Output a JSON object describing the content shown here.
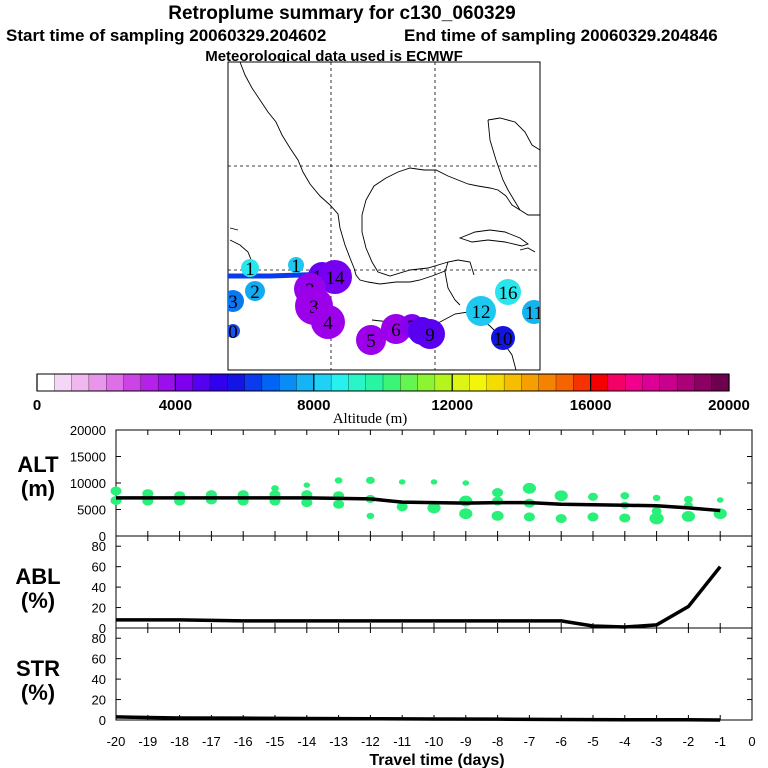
{
  "header": {
    "title": "Retroplume summary for c130_060329",
    "start_label": "Start time of sampling 20060329.204602",
    "end_label": "End time of sampling 20060329.204846",
    "met_label": "Meteorological data used is ECMWF"
  },
  "colorbar": {
    "label": "Altitude (m)",
    "ticks": [
      "0",
      "4000",
      "8000",
      "12000",
      "16000",
      "20000"
    ],
    "colors": [
      "#ffffff",
      "#f5d6f5",
      "#efb8ef",
      "#e896ea",
      "#dd70e6",
      "#cc44e6",
      "#b422e8",
      "#9a10ea",
      "#7e00ee",
      "#5500f0",
      "#3200ee",
      "#1414e6",
      "#0a3cee",
      "#0064f5",
      "#0a8cf5",
      "#14b4f5",
      "#1ed2f5",
      "#28f0ee",
      "#28f5c8",
      "#28f5a0",
      "#3cf578",
      "#64f550",
      "#8cf532",
      "#b4f51e",
      "#dcf514",
      "#f5f50a",
      "#f5dc00",
      "#f5be00",
      "#f5a000",
      "#f58200",
      "#f56400",
      "#f53200",
      "#f50000",
      "#f50064",
      "#f0008c",
      "#dc0096",
      "#c8008c",
      "#aa0078",
      "#8c0064",
      "#6e0050"
    ]
  },
  "map": {
    "markers": [
      {
        "label": "1",
        "color": "#28e6ee"
      },
      {
        "label": "1",
        "color": "#1ec8f0"
      },
      {
        "label": "2",
        "color": "#14aaf0"
      },
      {
        "label": "3",
        "color": "#0a78f0"
      },
      {
        "label": "0",
        "color": "#1e50f0"
      },
      {
        "label": "13",
        "color": "#6a00f0"
      },
      {
        "label": "14",
        "color": "#7800f0"
      },
      {
        "label": "2",
        "color": "#9600ec"
      },
      {
        "label": "3",
        "color": "#9c00ea"
      },
      {
        "label": "4",
        "color": "#9c00ea"
      },
      {
        "label": "5",
        "color": "#9c00ea"
      },
      {
        "label": "6",
        "color": "#9c00ea"
      },
      {
        "label": "7",
        "color": "#8400ee"
      },
      {
        "label": "8",
        "color": "#5a00f0"
      },
      {
        "label": "9",
        "color": "#5a00f0"
      },
      {
        "label": "12",
        "color": "#1ec8f0"
      },
      {
        "label": "16",
        "color": "#28e6ee"
      },
      {
        "label": "11",
        "color": "#14b4f0"
      },
      {
        "label": "10",
        "color": "#1414e0"
      }
    ]
  },
  "chart_data": [
    {
      "type": "scatter",
      "name": "altitude",
      "ylabel": "ALT\n(m)",
      "ylabel_lines": [
        "ALT",
        "(m)"
      ],
      "xlabel": "Travel time (days)",
      "x_ticks": [
        -20,
        -19,
        -18,
        -17,
        -16,
        -15,
        -14,
        -13,
        -12,
        -11,
        -10,
        -9,
        -8,
        -7,
        -6,
        -5,
        -4,
        -3,
        -2,
        -1,
        0
      ],
      "x_tick_labels": [
        "-20",
        "-19",
        "-18",
        "-17",
        "-16",
        "-15",
        "-14",
        "-13",
        "-12",
        "-11",
        "-10",
        "-9",
        "-8",
        "-7",
        "-6",
        "-5",
        "-4",
        "-3",
        "-2",
        "-1",
        "0"
      ],
      "xlim": [
        -20,
        0
      ],
      "ylim": [
        0,
        20000
      ],
      "y_ticks": [
        0,
        5000,
        10000,
        15000,
        20000
      ],
      "y_tick_labels": [
        "0",
        "5000",
        "10000",
        "15000",
        "20000"
      ],
      "mean_line": {
        "x": [
          -20,
          -18,
          -16,
          -14,
          -12,
          -11,
          -10,
          -9,
          -8,
          -7,
          -6,
          -5,
          -4,
          -3,
          -2,
          -1
        ],
        "y": [
          7200,
          7200,
          7200,
          7200,
          7000,
          6400,
          6300,
          6200,
          6300,
          6300,
          6000,
          5900,
          5800,
          5700,
          5300,
          4800
        ]
      },
      "clusters": [
        {
          "x": -20,
          "y": 8500,
          "size": 1.0
        },
        {
          "x": -20,
          "y": 6700,
          "size": 1.0
        },
        {
          "x": -19,
          "y": 8000,
          "size": 1.0
        },
        {
          "x": -19,
          "y": 6600,
          "size": 1.0
        },
        {
          "x": -18,
          "y": 7600,
          "size": 1.0
        },
        {
          "x": -18,
          "y": 6600,
          "size": 1.0
        },
        {
          "x": -17,
          "y": 7800,
          "size": 1.0
        },
        {
          "x": -17,
          "y": 6800,
          "size": 1.0
        },
        {
          "x": -16,
          "y": 7800,
          "size": 1.0
        },
        {
          "x": -16,
          "y": 6600,
          "size": 1.0
        },
        {
          "x": -15,
          "y": 9000,
          "size": 0.7
        },
        {
          "x": -15,
          "y": 7800,
          "size": 1.0
        },
        {
          "x": -15,
          "y": 6600,
          "size": 1.0
        },
        {
          "x": -14,
          "y": 9600,
          "size": 0.6
        },
        {
          "x": -14,
          "y": 7800,
          "size": 1.0
        },
        {
          "x": -14,
          "y": 6300,
          "size": 1.0
        },
        {
          "x": -13,
          "y": 10500,
          "size": 0.7
        },
        {
          "x": -13,
          "y": 7600,
          "size": 1.0
        },
        {
          "x": -13,
          "y": 6000,
          "size": 1.0
        },
        {
          "x": -12,
          "y": 10500,
          "size": 0.8
        },
        {
          "x": -12,
          "y": 7000,
          "size": 0.9
        },
        {
          "x": -12,
          "y": 3800,
          "size": 0.7
        },
        {
          "x": -11,
          "y": 10200,
          "size": 0.6
        },
        {
          "x": -11,
          "y": 5500,
          "size": 1.0
        },
        {
          "x": -10,
          "y": 10200,
          "size": 0.6
        },
        {
          "x": -10,
          "y": 5300,
          "size": 1.2
        },
        {
          "x": -9,
          "y": 10000,
          "size": 0.6
        },
        {
          "x": -9,
          "y": 6600,
          "size": 1.2
        },
        {
          "x": -9,
          "y": 4200,
          "size": 1.2
        },
        {
          "x": -8,
          "y": 8200,
          "size": 1.0
        },
        {
          "x": -8,
          "y": 6600,
          "size": 1.0
        },
        {
          "x": -8,
          "y": 3800,
          "size": 1.1
        },
        {
          "x": -7,
          "y": 9000,
          "size": 1.2
        },
        {
          "x": -7,
          "y": 6200,
          "size": 1.0
        },
        {
          "x": -7,
          "y": 3600,
          "size": 1.0
        },
        {
          "x": -6,
          "y": 7600,
          "size": 1.2
        },
        {
          "x": -6,
          "y": 3300,
          "size": 1.0
        },
        {
          "x": -5,
          "y": 7400,
          "size": 0.9
        },
        {
          "x": -5,
          "y": 3600,
          "size": 1.0
        },
        {
          "x": -4,
          "y": 7600,
          "size": 0.8
        },
        {
          "x": -4,
          "y": 5800,
          "size": 0.8
        },
        {
          "x": -4,
          "y": 3400,
          "size": 1.0
        },
        {
          "x": -3,
          "y": 7200,
          "size": 0.7
        },
        {
          "x": -3,
          "y": 4700,
          "size": 0.9
        },
        {
          "x": -3,
          "y": 3300,
          "size": 1.3
        },
        {
          "x": -2,
          "y": 6900,
          "size": 0.8
        },
        {
          "x": -2,
          "y": 5800,
          "size": 0.8
        },
        {
          "x": -2,
          "y": 3700,
          "size": 1.2
        },
        {
          "x": -1,
          "y": 6800,
          "size": 0.6
        },
        {
          "x": -1,
          "y": 4200,
          "size": 1.2
        }
      ]
    },
    {
      "type": "line",
      "name": "abl",
      "ylabel": "ABL\n(%)",
      "ylabel_lines": [
        "ABL",
        "(%)"
      ],
      "xlim": [
        -20,
        0
      ],
      "ylim": [
        0,
        90
      ],
      "y_ticks": [
        0,
        20,
        40,
        60,
        80
      ],
      "y_tick_labels": [
        "0",
        "20",
        "40",
        "60",
        "80"
      ],
      "series": [
        {
          "name": "ABL",
          "x": [
            -20,
            -18,
            -16,
            -14,
            -12,
            -10,
            -8,
            -7,
            -6,
            -5,
            -4,
            -3,
            -2,
            -1
          ],
          "y": [
            8,
            8,
            7,
            7,
            7,
            7,
            7,
            7,
            7,
            2,
            1,
            3,
            21,
            60
          ]
        }
      ]
    },
    {
      "type": "line",
      "name": "str",
      "ylabel": "STR\n(%)",
      "ylabel_lines": [
        "STR",
        "(%)"
      ],
      "xlim": [
        -20,
        0
      ],
      "ylim": [
        0,
        90
      ],
      "y_ticks": [
        0,
        20,
        40,
        60,
        80
      ],
      "y_tick_labels": [
        "0",
        "20",
        "40",
        "60",
        "80"
      ],
      "series": [
        {
          "name": "STR",
          "x": [
            -20,
            -19,
            -18,
            -16,
            -14,
            -12,
            -10,
            -8,
            -6,
            -4,
            -2,
            -1
          ],
          "y": [
            3,
            2.5,
            2,
            1.8,
            1.5,
            1.2,
            1,
            0.8,
            0.5,
            0.3,
            0.2,
            0
          ]
        }
      ]
    }
  ]
}
